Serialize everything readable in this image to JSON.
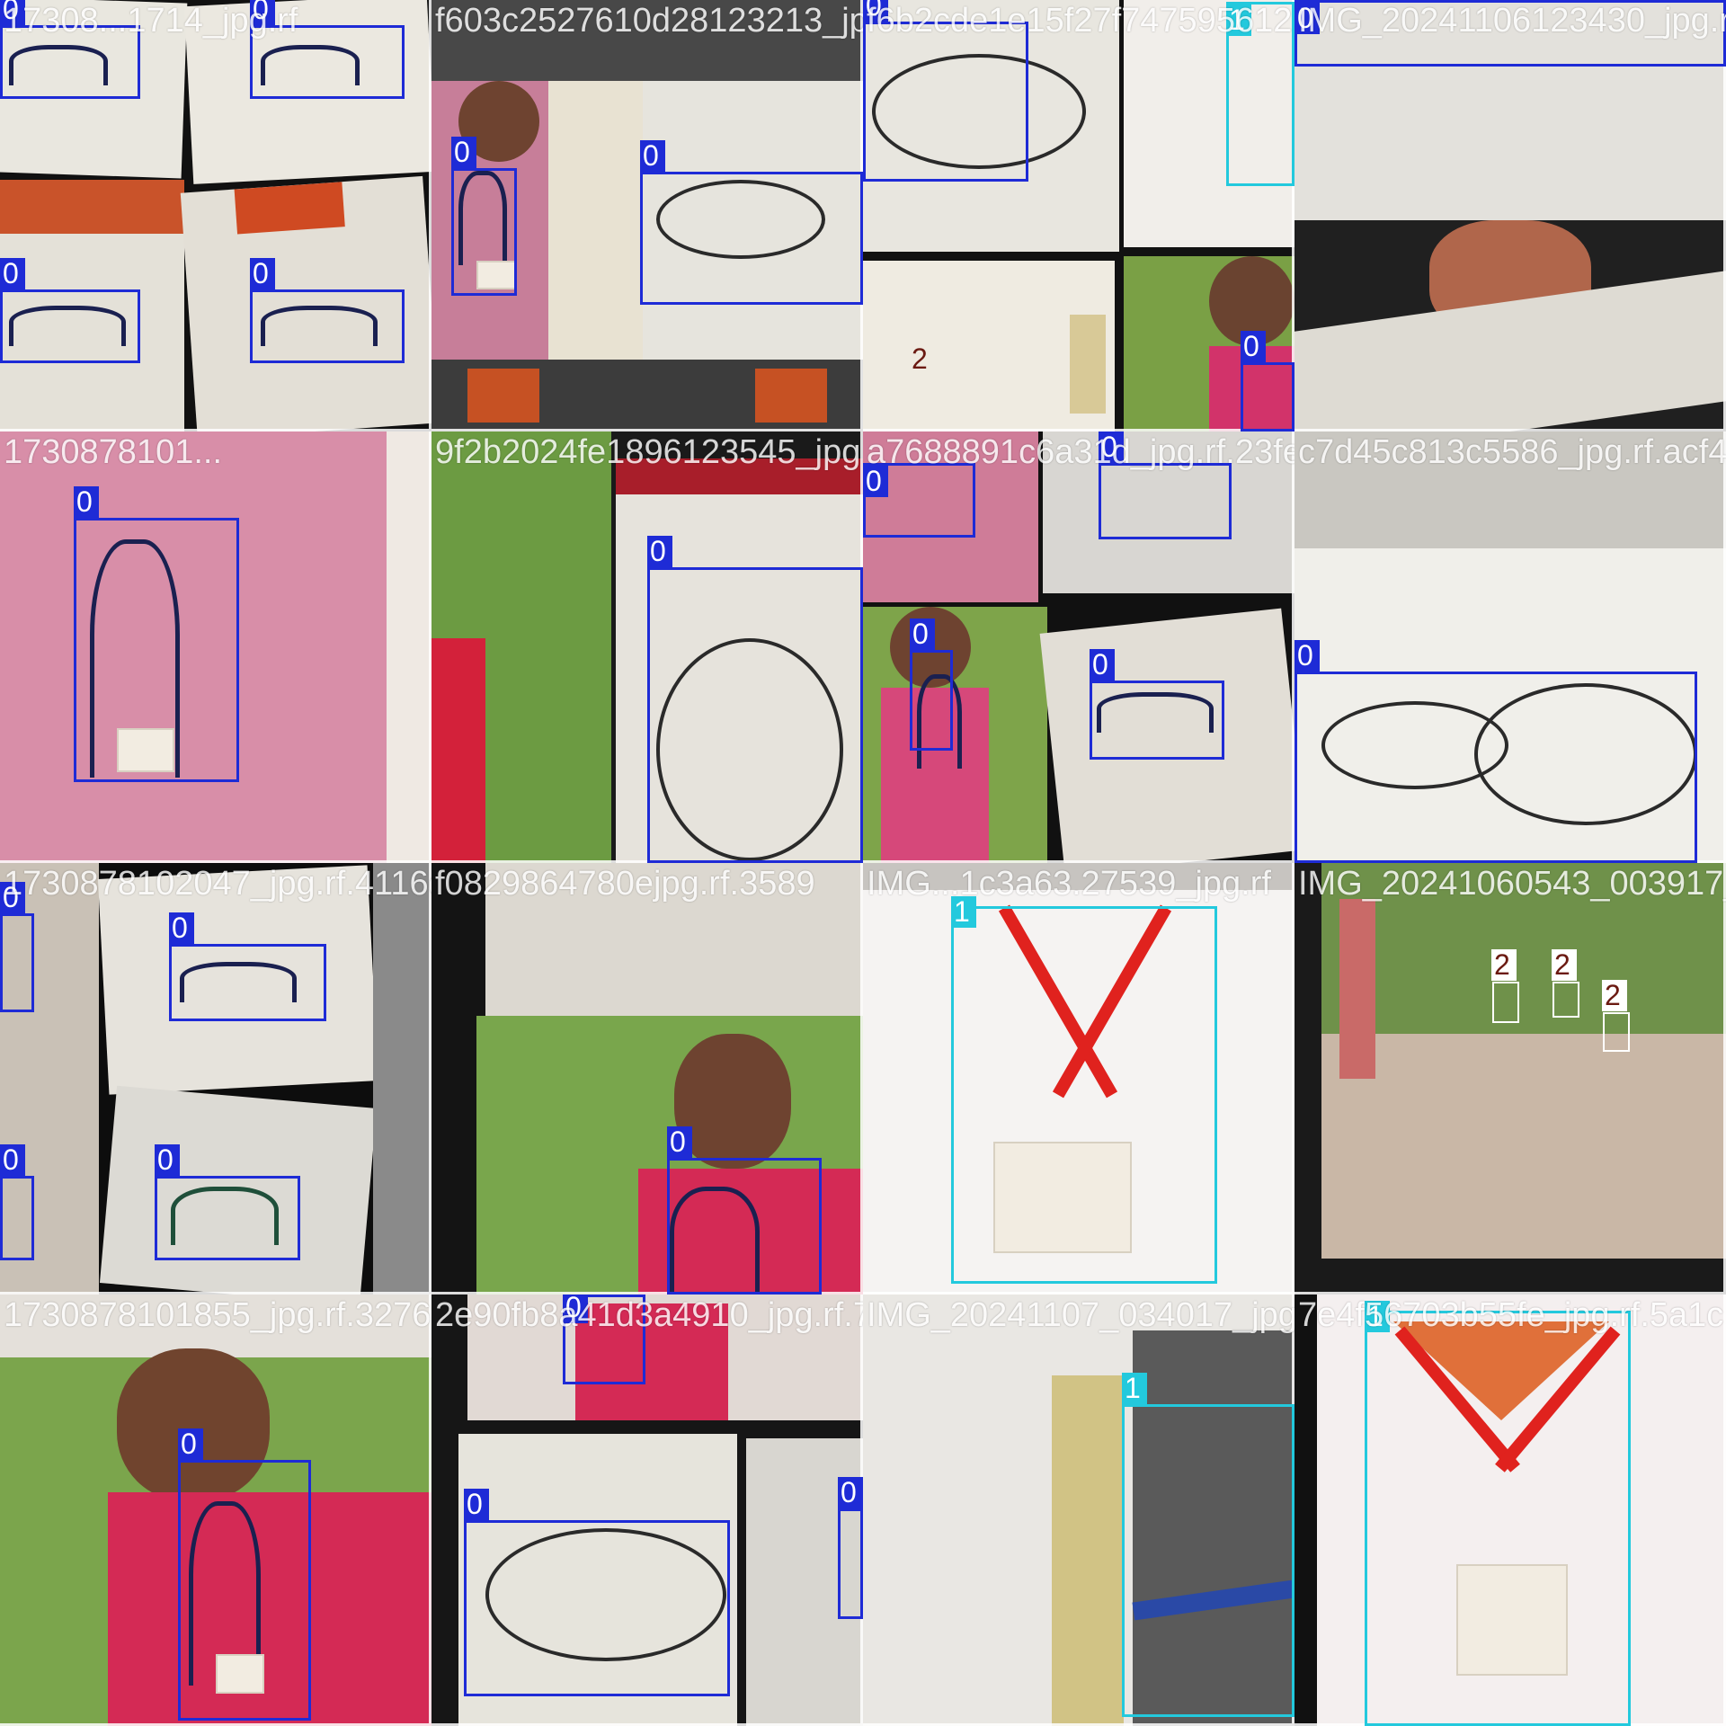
{
  "tiles": [
    {
      "filename": "17308...1714_jpg.rf",
      "boxes": [
        {
          "cls": "0"
        },
        {
          "cls": "0"
        },
        {
          "cls": "0"
        },
        {
          "cls": "0"
        }
      ]
    },
    {
      "filename": "f603c2527610d28123213_jpg.rf",
      "boxes": [
        {
          "cls": "0"
        },
        {
          "cls": "0"
        }
      ]
    },
    {
      "filename": "f6b2cde1e15f27f747595612 ...",
      "boxes": [
        {
          "cls": "0"
        },
        {
          "cls": "1"
        },
        {
          "cls": "2"
        },
        {
          "cls": "0"
        }
      ]
    },
    {
      "filename": "IMG_20241106123430_jpg.rf",
      "boxes": [
        {
          "cls": "0"
        }
      ]
    },
    {
      "filename": "1730878101...",
      "boxes": [
        {
          "cls": "0"
        }
      ]
    },
    {
      "filename": "9f2b2024fe1896123545_jpg.rf",
      "boxes": [
        {
          "cls": "0"
        }
      ]
    },
    {
      "filename": "a7688891c6a31d_jpg.rf.23fe0b",
      "boxes": [
        {
          "cls": "0"
        },
        {
          "cls": "0"
        },
        {
          "cls": "0"
        },
        {
          "cls": "0"
        }
      ]
    },
    {
      "filename": "c7d45c813c5586_jpg.rf.acf4",
      "boxes": [
        {
          "cls": "0"
        }
      ]
    },
    {
      "filename": "1730878102047_jpg.rf.4116d",
      "boxes": [
        {
          "cls": "0"
        },
        {
          "cls": "0"
        },
        {
          "cls": "0"
        },
        {
          "cls": "0"
        }
      ]
    },
    {
      "filename": "f0829864780ejpg.rf.3589",
      "boxes": [
        {
          "cls": "0"
        }
      ]
    },
    {
      "filename": "IMG...1c3a63.27539_jpg.rf",
      "boxes": [
        {
          "cls": "1"
        }
      ]
    },
    {
      "filename": "IMG_20241060543_003917_jpg",
      "boxes": [
        {
          "cls": "2"
        },
        {
          "cls": "2"
        },
        {
          "cls": "2"
        }
      ]
    },
    {
      "filename": "1730878101855_jpg.rf.3276",
      "boxes": [
        {
          "cls": "0"
        }
      ]
    },
    {
      "filename": "2e90fb8a41d3a4910_jpg.rf.703a",
      "boxes": [
        {
          "cls": "0"
        },
        {
          "cls": "0"
        },
        {
          "cls": "0"
        }
      ]
    },
    {
      "filename": "IMG_20241107_034017_jpg",
      "boxes": [
        {
          "cls": "1"
        }
      ]
    },
    {
      "filename": "7e4f56703b55fe_jpg.rf.5a1c",
      "boxes": [
        {
          "cls": "1"
        }
      ]
    }
  ]
}
